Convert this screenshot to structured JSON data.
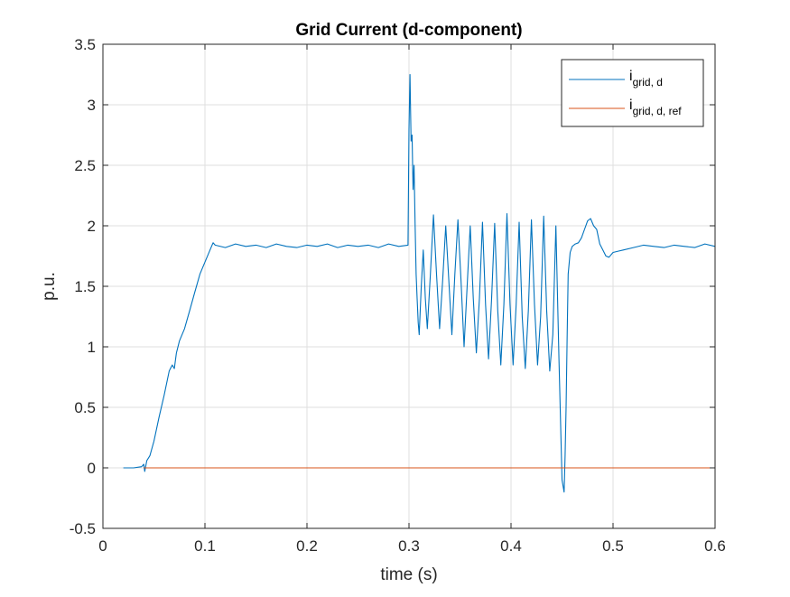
{
  "chart_data": {
    "type": "line",
    "title": "Grid Current (d-component)",
    "xlabel": "time (s)",
    "ylabel": "p.u.",
    "xlim": [
      0,
      0.6
    ],
    "ylim": [
      -0.5,
      3.5
    ],
    "xticks": [
      0,
      0.1,
      0.2,
      0.3,
      0.4,
      0.5,
      0.6
    ],
    "xtick_labels": [
      "0",
      "0.1",
      "0.2",
      "0.3",
      "0.4",
      "0.5",
      "0.6"
    ],
    "yticks": [
      -0.5,
      0,
      0.5,
      1,
      1.5,
      2,
      2.5,
      3,
      3.5
    ],
    "ytick_labels": [
      "-0.5",
      "0",
      "0.5",
      "1",
      "1.5",
      "2",
      "2.5",
      "3",
      "3.5"
    ],
    "grid": true,
    "legend_position": "top-right",
    "colors": {
      "series1": "#0072BD",
      "series2": "#D95319",
      "axes": "#262626",
      "grid": "#dfdfdf"
    },
    "series": [
      {
        "name": "i_grid, d",
        "label_main": "i",
        "label_sub": "grid, d",
        "x": [
          0.02,
          0.03,
          0.038,
          0.04,
          0.041,
          0.043,
          0.046,
          0.05,
          0.055,
          0.06,
          0.065,
          0.068,
          0.07,
          0.072,
          0.075,
          0.08,
          0.085,
          0.09,
          0.095,
          0.1,
          0.105,
          0.108,
          0.11,
          0.12,
          0.13,
          0.14,
          0.15,
          0.16,
          0.17,
          0.18,
          0.19,
          0.2,
          0.21,
          0.22,
          0.23,
          0.24,
          0.25,
          0.26,
          0.27,
          0.28,
          0.29,
          0.299,
          0.3,
          0.301,
          0.302,
          0.303,
          0.304,
          0.305,
          0.306,
          0.307,
          0.308,
          0.309,
          0.31,
          0.312,
          0.314,
          0.316,
          0.318,
          0.321,
          0.324,
          0.327,
          0.33,
          0.333,
          0.336,
          0.339,
          0.342,
          0.345,
          0.348,
          0.351,
          0.354,
          0.357,
          0.36,
          0.363,
          0.366,
          0.369,
          0.372,
          0.375,
          0.378,
          0.381,
          0.384,
          0.387,
          0.39,
          0.393,
          0.396,
          0.399,
          0.402,
          0.405,
          0.408,
          0.411,
          0.414,
          0.417,
          0.42,
          0.423,
          0.426,
          0.429,
          0.432,
          0.435,
          0.438,
          0.441,
          0.444,
          0.447,
          0.45,
          0.452,
          0.453,
          0.454,
          0.455,
          0.456,
          0.458,
          0.46,
          0.463,
          0.466,
          0.469,
          0.472,
          0.475,
          0.478,
          0.481,
          0.484,
          0.487,
          0.49,
          0.493,
          0.496,
          0.5,
          0.505,
          0.51,
          0.52,
          0.53,
          0.54,
          0.55,
          0.56,
          0.57,
          0.58,
          0.59,
          0.6
        ],
        "y": [
          0,
          0,
          0.01,
          0.03,
          -0.03,
          0.06,
          0.1,
          0.22,
          0.42,
          0.6,
          0.8,
          0.85,
          0.82,
          0.95,
          1.05,
          1.15,
          1.3,
          1.45,
          1.6,
          1.7,
          1.8,
          1.86,
          1.84,
          1.82,
          1.85,
          1.83,
          1.84,
          1.82,
          1.85,
          1.83,
          1.82,
          1.84,
          1.83,
          1.85,
          1.82,
          1.84,
          1.83,
          1.84,
          1.82,
          1.85,
          1.83,
          1.84,
          2.8,
          3.25,
          2.7,
          2.75,
          2.3,
          2.5,
          2.0,
          1.6,
          1.4,
          1.2,
          1.1,
          1.5,
          1.8,
          1.4,
          1.15,
          1.6,
          2.09,
          1.6,
          1.15,
          1.55,
          2.0,
          1.55,
          1.1,
          1.6,
          2.05,
          1.55,
          1.0,
          1.5,
          2.0,
          1.4,
          0.95,
          1.4,
          2.03,
          1.35,
          0.9,
          1.4,
          2.02,
          1.3,
          0.85,
          1.35,
          2.1,
          1.35,
          0.85,
          1.35,
          2.03,
          1.25,
          0.82,
          1.3,
          2.05,
          1.35,
          0.85,
          1.25,
          2.08,
          1.3,
          0.8,
          1.1,
          2.0,
          0.9,
          -0.1,
          -0.2,
          0.1,
          0.5,
          1.1,
          1.6,
          1.78,
          1.83,
          1.85,
          1.86,
          1.9,
          1.97,
          2.04,
          2.06,
          2.0,
          1.97,
          1.85,
          1.8,
          1.75,
          1.74,
          1.78,
          1.79,
          1.8,
          1.82,
          1.84,
          1.83,
          1.82,
          1.84,
          1.83,
          1.82,
          1.85,
          1.83
        ]
      },
      {
        "name": "i_grid, d, ref",
        "label_main": "i",
        "label_sub": "grid, d, ref",
        "x": [
          0.04,
          0.6
        ],
        "y": [
          0,
          0
        ]
      }
    ]
  }
}
